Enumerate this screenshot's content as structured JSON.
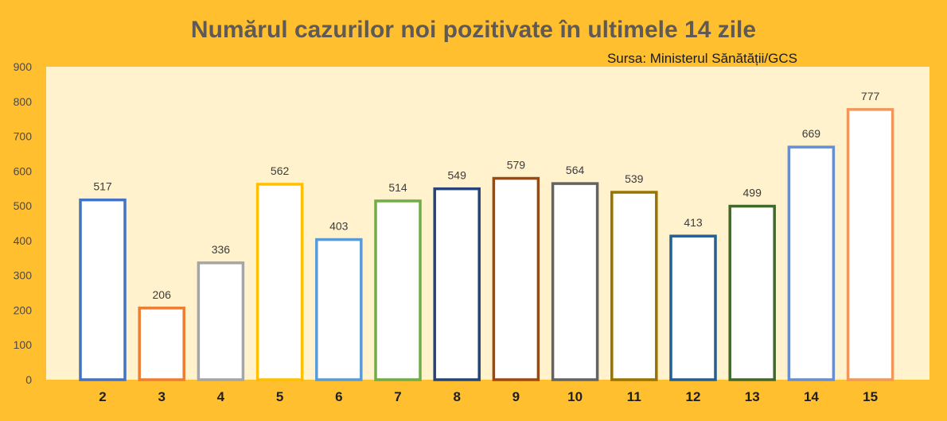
{
  "chart_data": {
    "type": "bar",
    "title": "Numărul cazurilor noi pozitivate în ultimele 14 zile",
    "subtitle": "Sursa: Ministerul Sănătății/GCS",
    "xlabel": "",
    "ylabel": "",
    "ylim": [
      0,
      900
    ],
    "yticks": [
      0,
      100,
      200,
      300,
      400,
      500,
      600,
      700,
      800,
      900
    ],
    "grid": false,
    "legend": "none",
    "categories": [
      "2",
      "3",
      "4",
      "5",
      "6",
      "7",
      "8",
      "9",
      "10",
      "11",
      "12",
      "13",
      "14",
      "15"
    ],
    "values": [
      517,
      206,
      336,
      562,
      403,
      514,
      549,
      579,
      564,
      539,
      413,
      499,
      669,
      777
    ],
    "bar_fill": "#ffffff",
    "bar_colors": [
      "#4472c4",
      "#ed7d31",
      "#a5a5a5",
      "#ffc000",
      "#5b9bd5",
      "#70ad47",
      "#264478",
      "#9e480e",
      "#636363",
      "#997300",
      "#255e91",
      "#43682b",
      "#698ed0",
      "#f1975a"
    ],
    "plot_background": "#fff2cc",
    "page_background": "#ffbf2e"
  }
}
